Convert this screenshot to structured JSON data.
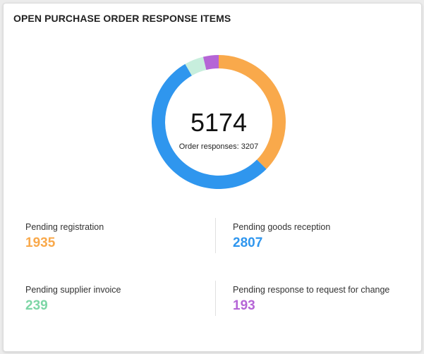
{
  "card": {
    "title": "OPEN PURCHASE ORDER RESPONSE ITEMS"
  },
  "center": {
    "value": "5174",
    "subtitle": "Order responses: 3207"
  },
  "stats": [
    {
      "label": "Pending registration",
      "value": "1935",
      "color": "#F9A94B"
    },
    {
      "label": "Pending goods reception",
      "value": "2807",
      "color": "#2F96EE"
    },
    {
      "label": "Pending supplier invoice",
      "value": "239",
      "color": "#7DD6A6"
    },
    {
      "label": "Pending response to request for change",
      "value": "193",
      "color": "#B565D6"
    }
  ],
  "chart_data": {
    "type": "pie",
    "variant": "donut",
    "title": "OPEN PURCHASE ORDER RESPONSE ITEMS",
    "center_label": "5174",
    "center_sublabel": "Order responses: 3207",
    "categories": [
      "Pending registration",
      "Pending goods reception",
      "Pending supplier invoice",
      "Pending response to request for change"
    ],
    "values": [
      1935,
      2807,
      239,
      193
    ],
    "colors": [
      "#F9A94B",
      "#2F96EE",
      "#C7EEDD",
      "#B565D6"
    ],
    "total": 5174
  }
}
